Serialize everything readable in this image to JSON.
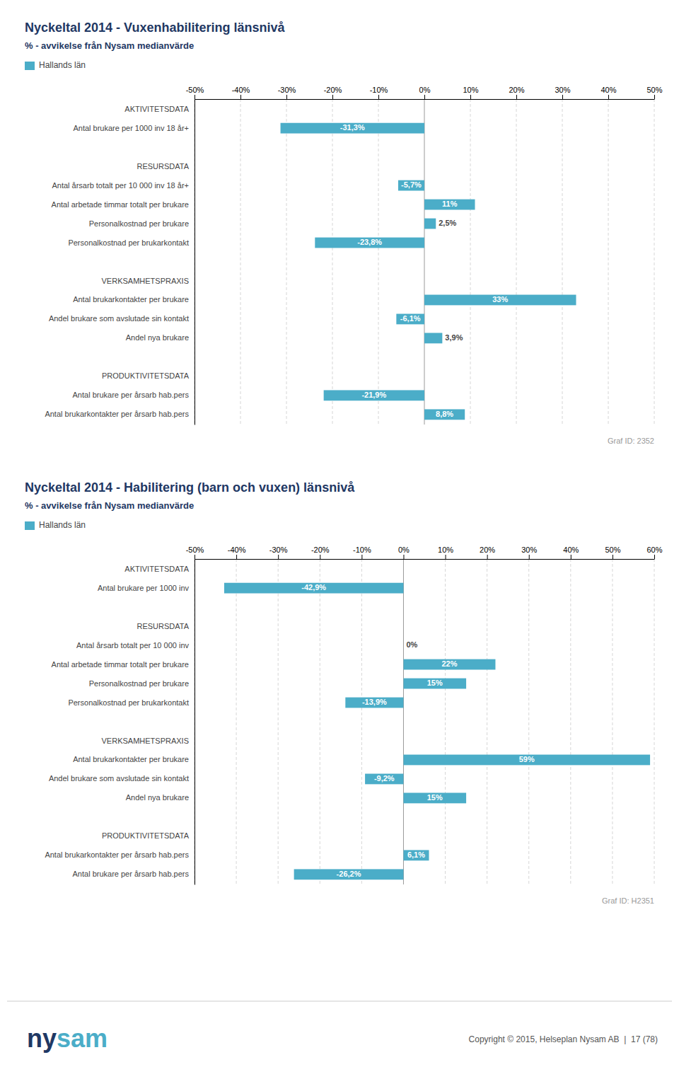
{
  "chart_data": [
    {
      "type": "bar",
      "orientation": "horizontal",
      "title": "Nyckeltal 2014 - Vuxenhabilitering länsnivå",
      "subtitle": "% - avvikelse från Nysam medianvärde",
      "categories": [
        "AKTIVITETSDATA",
        "Antal brukare per 1000 inv 18 år+",
        null,
        "RESURSDATA",
        "Antal årsarb totalt per 10 000 inv 18 år+",
        "Antal arbetade timmar totalt per brukare",
        "Personalkostnad per brukare",
        "Personalkostnad per brukarkontakt",
        null,
        "VERKSAMHETSPRAXIS",
        "Antal brukarkontakter per brukare",
        "Andel brukare som avslutade sin kontakt",
        "Andel nya brukare",
        null,
        "PRODUKTIVITETSDATA",
        "Antal brukare per årsarb hab.pers",
        "Antal brukarkontakter per årsarb hab.pers"
      ],
      "series": [
        {
          "name": "Hallands län",
          "color": "#4BADC8",
          "values": [
            null,
            -31.3,
            null,
            null,
            -5.7,
            11.0,
            2.5,
            -23.8,
            null,
            null,
            33.0,
            -6.1,
            3.9,
            null,
            null,
            -21.9,
            8.8
          ],
          "value_labels": [
            null,
            "-31,3%",
            null,
            null,
            "-5,7%",
            "11%",
            "2,5%",
            "-23,8%",
            null,
            null,
            "33%",
            "-6,1%",
            "3,9%",
            null,
            null,
            "-21,9%",
            "8,8%"
          ]
        }
      ],
      "xlim": [
        -50,
        50
      ],
      "xticks": [
        {
          "value": -50,
          "label": "-50%"
        },
        {
          "value": -40,
          "label": "-40%"
        },
        {
          "value": -30,
          "label": "-30%"
        },
        {
          "value": -20,
          "label": "-20%"
        },
        {
          "value": -10,
          "label": "-10%"
        },
        {
          "value": 0,
          "label": "0%"
        },
        {
          "value": 10,
          "label": "10%"
        },
        {
          "value": 20,
          "label": "20%"
        },
        {
          "value": 30,
          "label": "30%"
        },
        {
          "value": 40,
          "label": "40%"
        },
        {
          "value": 50,
          "label": "50%"
        }
      ],
      "grid": true,
      "legend": "top-left",
      "data_labels": true,
      "annotations": [
        "Graf ID: 2352"
      ]
    },
    {
      "type": "bar",
      "orientation": "horizontal",
      "title": "Nyckeltal 2014 - Habilitering (barn och vuxen) länsnivå",
      "subtitle": "% - avvikelse från Nysam medianvärde",
      "categories": [
        "AKTIVITETSDATA",
        "Antal brukare per 1000 inv",
        null,
        "RESURSDATA",
        "Antal årsarb totalt per 10 000 inv",
        "Antal arbetade timmar totalt per brukare",
        "Personalkostnad per brukare",
        "Personalkostnad per brukarkontakt",
        null,
        "VERKSAMHETSPRAXIS",
        "Antal brukarkontakter per brukare",
        "Andel brukare som avslutade sin kontakt",
        "Andel nya brukare",
        null,
        "PRODUKTIVITETSDATA",
        "Antal brukarkontakter per årsarb hab.pers",
        "Antal brukare per årsarb hab.pers"
      ],
      "series": [
        {
          "name": "Hallands län",
          "color": "#4BADC8",
          "values": [
            null,
            -42.9,
            null,
            null,
            0.0,
            22.0,
            15.0,
            -13.9,
            null,
            null,
            59.0,
            -9.2,
            15.0,
            null,
            null,
            6.1,
            -26.2
          ],
          "value_labels": [
            null,
            "-42,9%",
            null,
            null,
            "0%",
            "22%",
            "15%",
            "-13,9%",
            null,
            null,
            "59%",
            "-9,2%",
            "15%",
            null,
            null,
            "6,1%",
            "-26,2%"
          ]
        }
      ],
      "xlim": [
        -50,
        60
      ],
      "xticks": [
        {
          "value": -50,
          "label": "-50%"
        },
        {
          "value": -40,
          "label": "-40%"
        },
        {
          "value": -30,
          "label": "-30%"
        },
        {
          "value": -20,
          "label": "-20%"
        },
        {
          "value": -10,
          "label": "-10%"
        },
        {
          "value": 0,
          "label": "0%"
        },
        {
          "value": 10,
          "label": "10%"
        },
        {
          "value": 20,
          "label": "20%"
        },
        {
          "value": 30,
          "label": "30%"
        },
        {
          "value": 40,
          "label": "40%"
        },
        {
          "value": 50,
          "label": "50%"
        },
        {
          "value": 60,
          "label": "60%"
        }
      ],
      "grid": true,
      "legend": "top-left",
      "data_labels": true,
      "annotations": [
        "Graf ID: H2351"
      ]
    }
  ],
  "annotations": [
    "ny",
    "sam",
    "Copyright © 2015, Helseplan Nysam AB  |  17 (78)"
  ]
}
